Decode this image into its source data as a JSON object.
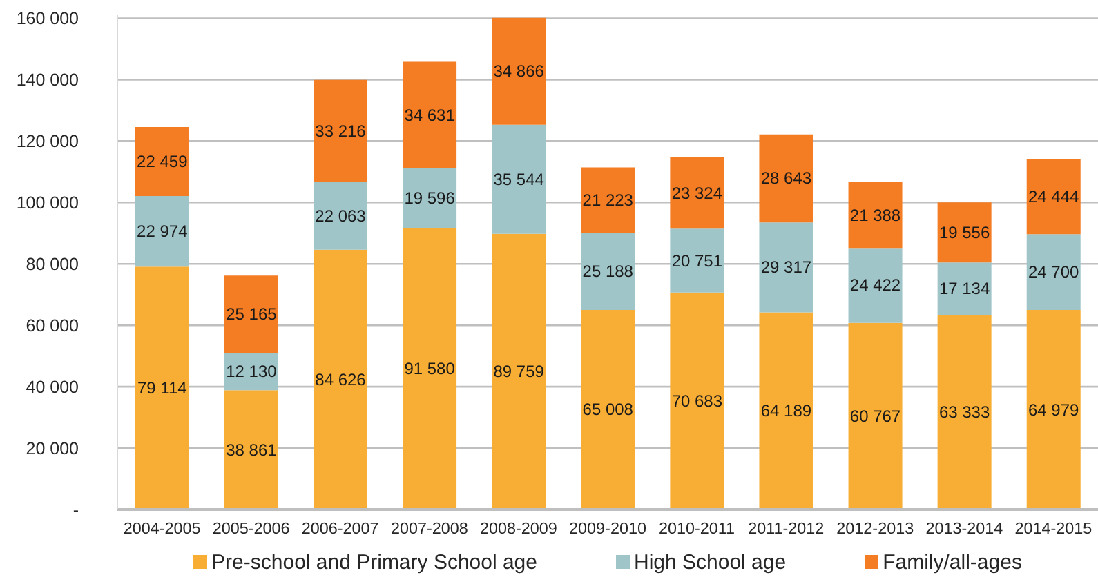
{
  "chart_data": {
    "type": "bar",
    "stacked": true,
    "categories": [
      "2004-2005",
      "2005-2006",
      "2006-2007",
      "2007-2008",
      "2008-2009",
      "2009-2010",
      "2010-2011",
      "2011-2012",
      "2012-2013",
      "2013-2014",
      "2014-2015"
    ],
    "series": [
      {
        "name": "Pre-school and Primary School age",
        "color": "#f8ae34",
        "values": [
          79114,
          38861,
          84626,
          91580,
          89759,
          65008,
          70683,
          64189,
          60767,
          63333,
          64979
        ],
        "value_labels": [
          "79 114",
          "38 861",
          "84 626",
          "91 580",
          "89 759",
          "65 008",
          "70 683",
          "64 189",
          "60 767",
          "63 333",
          "64 979"
        ]
      },
      {
        "name": "High School age",
        "color": "#9fc5c9",
        "values": [
          22974,
          12130,
          22063,
          19596,
          35544,
          25188,
          20751,
          29317,
          24422,
          17134,
          24700
        ],
        "value_labels": [
          "22 974",
          "12 130",
          "22 063",
          "19 596",
          "35 544",
          "25 188",
          "20 751",
          "29 317",
          "24 422",
          "17 134",
          "24 700"
        ]
      },
      {
        "name": "Family/all-ages",
        "color": "#f47c22",
        "values": [
          22459,
          25165,
          33216,
          34631,
          34866,
          21223,
          23324,
          28643,
          21388,
          19556,
          24444
        ],
        "value_labels": [
          "22 459",
          "25 165",
          "33 216",
          "34 631",
          "34 866",
          "21 223",
          "23 324",
          "28 643",
          "21 388",
          "19 556",
          "24 444"
        ]
      }
    ],
    "ylim": [
      0,
      161000
    ],
    "yticks": [
      {
        "value": 0,
        "label": "-"
      },
      {
        "value": 20000,
        "label": "20 000"
      },
      {
        "value": 40000,
        "label": "40 000"
      },
      {
        "value": 60000,
        "label": "60 000"
      },
      {
        "value": 80000,
        "label": "80 000"
      },
      {
        "value": 100000,
        "label": "100 000"
      },
      {
        "value": 120000,
        "label": "120 000"
      },
      {
        "value": 140000,
        "label": "140 000"
      },
      {
        "value": 160000,
        "label": "160 000"
      }
    ],
    "grid": "y",
    "legend": "bottom"
  }
}
